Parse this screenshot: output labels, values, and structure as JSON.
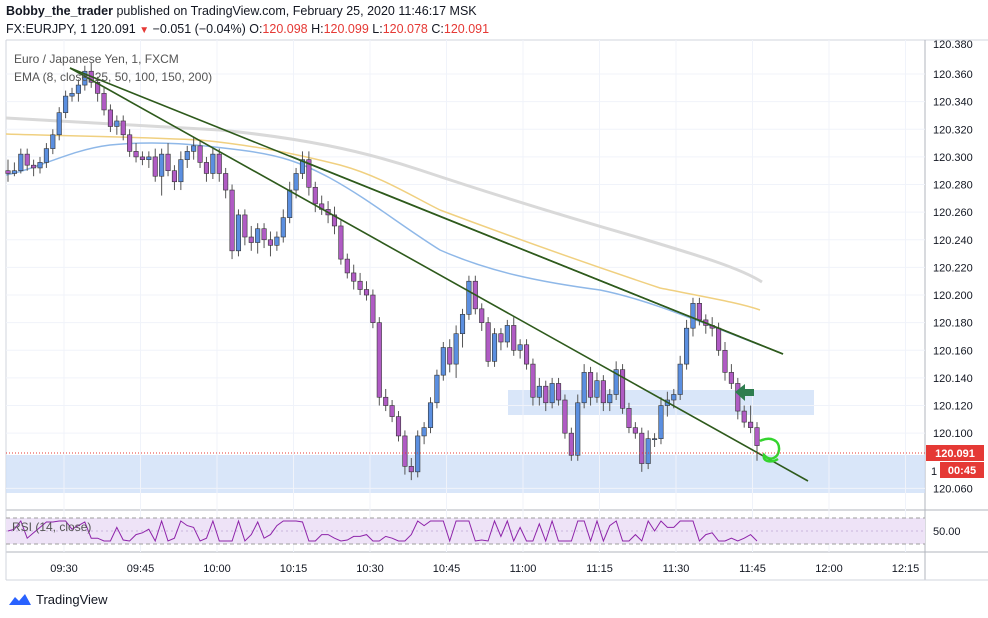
{
  "header": {
    "publisher": "Bobby_the_trader",
    "published_text": "published on TradingView.com, February 25, 2020 11:46:17 MSK",
    "symbol": "FX:EURJPY, 1",
    "last": "120.091",
    "change": "−0.051 (−0.04%)",
    "o_label": "O:",
    "o_value": "120.098",
    "h_label": "H:",
    "h_value": "120.099",
    "l_label": "L:",
    "l_value": "120.078",
    "c_label": "C:",
    "c_value": "120.091"
  },
  "legend": {
    "series_title": "Euro / Japanese Yen, 1, FXCM",
    "ema": "EMA (8, close, 25, 50, 100, 150, 200)",
    "rsi": "RSI (14, close)"
  },
  "footer": {
    "brand": "TradingView"
  },
  "chart_data": {
    "type": "candlestick",
    "price_ticks": [
      "120.360",
      "120.340",
      "120.320",
      "120.300",
      "120.280",
      "120.260",
      "120.240",
      "120.220",
      "120.200",
      "120.180",
      "120.160",
      "120.140",
      "120.120",
      "120.100",
      "120.060"
    ],
    "top_partial_tick": "120.380",
    "ylim": [
      120.048,
      120.381
    ],
    "time_ticks": [
      "09:30",
      "09:45",
      "10:00",
      "10:15",
      "10:30",
      "10:45",
      "11:00",
      "11:15",
      "11:30",
      "11:45",
      "12:00",
      "12:15"
    ],
    "current_price_badge": "120.091",
    "countdown_badge": "00:45",
    "hidden_tick_partial": "1",
    "rsi_ticks": [
      "50.00"
    ],
    "rsi_guides": [
      70,
      30
    ],
    "annotations": {
      "support_zones": [
        "120.118–120.135",
        "120.066–120.091"
      ],
      "trendlines": 3,
      "arrow_near": "120.137"
    },
    "candles_approx": [
      [
        120.29,
        120.298,
        120.282,
        120.288
      ],
      [
        120.288,
        120.296,
        120.286,
        120.29
      ],
      [
        120.29,
        120.306,
        120.288,
        120.302
      ],
      [
        120.302,
        120.306,
        120.29,
        120.294
      ],
      [
        120.294,
        120.298,
        120.286,
        120.292
      ],
      [
        120.292,
        120.3,
        120.288,
        120.296
      ],
      [
        120.296,
        120.31,
        120.292,
        120.306
      ],
      [
        120.306,
        120.32,
        120.302,
        120.316
      ],
      [
        120.316,
        120.336,
        120.312,
        120.332
      ],
      [
        120.332,
        120.348,
        120.328,
        120.344
      ],
      [
        120.344,
        120.35,
        120.34,
        120.346
      ],
      [
        120.346,
        120.356,
        120.34,
        120.352
      ],
      [
        120.352,
        120.366,
        120.348,
        120.362
      ],
      [
        120.362,
        120.368,
        120.35,
        120.354
      ],
      [
        120.354,
        120.358,
        120.34,
        120.346
      ],
      [
        120.346,
        120.35,
        120.33,
        120.334
      ],
      [
        120.334,
        120.338,
        120.318,
        120.322
      ],
      [
        120.322,
        120.33,
        120.316,
        120.326
      ],
      [
        120.326,
        120.33,
        120.312,
        120.316
      ],
      [
        120.316,
        120.32,
        120.3,
        120.304
      ],
      [
        120.304,
        120.31,
        120.296,
        120.3
      ],
      [
        120.3,
        120.304,
        120.294,
        120.298
      ],
      [
        120.298,
        120.304,
        120.292,
        120.3
      ],
      [
        120.3,
        120.306,
        120.282,
        120.286
      ],
      [
        120.286,
        120.306,
        120.272,
        120.302
      ],
      [
        120.302,
        120.31,
        120.286,
        120.29
      ],
      [
        120.29,
        120.294,
        120.276,
        120.282
      ],
      [
        120.282,
        120.304,
        120.276,
        120.298
      ],
      [
        120.298,
        120.308,
        120.292,
        120.304
      ],
      [
        120.304,
        120.314,
        120.298,
        120.308
      ],
      [
        120.308,
        120.312,
        120.292,
        120.296
      ],
      [
        120.296,
        120.3,
        120.282,
        120.288
      ],
      [
        120.288,
        120.306,
        120.284,
        120.302
      ],
      [
        120.302,
        120.306,
        120.282,
        120.288
      ],
      [
        120.288,
        120.292,
        120.27,
        120.276
      ],
      [
        120.276,
        120.28,
        120.226,
        120.232
      ],
      [
        120.232,
        120.262,
        120.228,
        120.258
      ],
      [
        120.258,
        120.262,
        120.236,
        120.242
      ],
      [
        120.242,
        120.25,
        120.232,
        120.238
      ],
      [
        120.238,
        120.252,
        120.23,
        120.248
      ],
      [
        120.248,
        120.252,
        120.234,
        120.24
      ],
      [
        120.24,
        120.246,
        120.228,
        120.236
      ],
      [
        120.236,
        120.246,
        120.232,
        120.242
      ],
      [
        120.242,
        120.262,
        120.238,
        120.256
      ],
      [
        120.256,
        120.282,
        120.252,
        120.276
      ],
      [
        120.276,
        120.292,
        120.27,
        120.288
      ],
      [
        120.288,
        120.304,
        120.284,
        120.298
      ],
      [
        120.298,
        120.304,
        120.272,
        120.278
      ],
      [
        120.278,
        120.282,
        120.26,
        120.266
      ],
      [
        120.266,
        120.272,
        120.258,
        120.262
      ],
      [
        120.262,
        120.268,
        120.252,
        120.258
      ],
      [
        120.258,
        120.264,
        120.244,
        120.25
      ],
      [
        120.25,
        120.254,
        120.222,
        120.226
      ],
      [
        120.226,
        120.23,
        120.212,
        120.216
      ],
      [
        120.216,
        120.222,
        120.204,
        120.21
      ],
      [
        120.21,
        120.216,
        120.2,
        120.204
      ],
      [
        120.204,
        120.21,
        120.196,
        120.2
      ],
      [
        120.2,
        120.204,
        120.176,
        120.18
      ],
      [
        120.18,
        120.184,
        120.12,
        120.126
      ],
      [
        120.126,
        120.132,
        120.116,
        120.12
      ],
      [
        120.12,
        120.124,
        120.108,
        120.112
      ],
      [
        120.112,
        120.116,
        120.094,
        120.098
      ],
      [
        120.098,
        120.102,
        120.07,
        120.076
      ],
      [
        120.076,
        120.082,
        120.066,
        120.072
      ],
      [
        120.072,
        120.102,
        120.068,
        120.098
      ],
      [
        120.098,
        120.108,
        120.092,
        120.104
      ],
      [
        120.104,
        120.126,
        120.1,
        120.122
      ],
      [
        120.122,
        120.146,
        120.118,
        120.142
      ],
      [
        120.142,
        120.166,
        120.138,
        120.162
      ],
      [
        120.162,
        120.168,
        120.144,
        120.15
      ],
      [
        120.15,
        120.178,
        120.14,
        120.172
      ],
      [
        120.172,
        120.19,
        120.162,
        120.186
      ],
      [
        120.186,
        120.214,
        120.182,
        120.21
      ],
      [
        120.21,
        120.214,
        120.186,
        120.19
      ],
      [
        120.19,
        120.194,
        120.174,
        120.18
      ],
      [
        120.18,
        120.184,
        120.148,
        120.152
      ],
      [
        120.152,
        120.176,
        120.148,
        120.172
      ],
      [
        120.172,
        120.176,
        120.16,
        120.166
      ],
      [
        120.166,
        120.182,
        120.162,
        120.178
      ],
      [
        120.178,
        120.184,
        120.156,
        120.16
      ],
      [
        120.16,
        120.168,
        120.154,
        120.164
      ],
      [
        120.164,
        120.168,
        120.146,
        120.15
      ],
      [
        120.15,
        120.154,
        120.12,
        120.126
      ],
      [
        120.126,
        120.14,
        120.12,
        120.134
      ],
      [
        120.134,
        120.138,
        120.116,
        120.122
      ],
      [
        120.122,
        120.14,
        120.118,
        120.136
      ],
      [
        120.136,
        120.14,
        120.12,
        120.124
      ],
      [
        120.124,
        120.128,
        120.096,
        120.1
      ],
      [
        120.1,
        120.104,
        120.08,
        120.084
      ],
      [
        120.084,
        120.128,
        120.08,
        120.122
      ],
      [
        120.122,
        120.15,
        120.118,
        120.144
      ],
      [
        120.144,
        120.148,
        120.12,
        120.126
      ],
      [
        120.126,
        120.144,
        120.122,
        120.138
      ],
      [
        120.138,
        120.142,
        120.116,
        120.122
      ],
      [
        120.122,
        120.132,
        120.116,
        120.128
      ],
      [
        120.128,
        120.152,
        120.124,
        120.146
      ],
      [
        120.146,
        120.15,
        120.114,
        120.118
      ],
      [
        120.118,
        120.122,
        120.1,
        120.104
      ],
      [
        120.104,
        120.108,
        120.096,
        120.1
      ],
      [
        120.1,
        120.104,
        120.072,
        120.078
      ],
      [
        120.078,
        120.102,
        120.074,
        120.096
      ],
      [
        120.096,
        120.1,
        120.09,
        120.096
      ],
      [
        120.096,
        120.126,
        120.092,
        120.12
      ],
      [
        120.12,
        120.13,
        120.112,
        120.124
      ],
      [
        120.124,
        120.132,
        120.118,
        120.128
      ],
      [
        120.128,
        120.156,
        120.124,
        120.15
      ],
      [
        120.15,
        120.182,
        120.146,
        120.176
      ],
      [
        120.176,
        120.198,
        120.17,
        120.194
      ],
      [
        120.194,
        120.198,
        120.178,
        120.182
      ],
      [
        120.182,
        120.186,
        120.172,
        120.178
      ],
      [
        120.178,
        120.184,
        120.17,
        120.176
      ],
      [
        120.176,
        120.18,
        120.156,
        120.16
      ],
      [
        120.16,
        120.166,
        120.138,
        120.144
      ],
      [
        120.144,
        120.15,
        120.132,
        120.136
      ],
      [
        120.136,
        120.14,
        120.11,
        120.116
      ],
      [
        120.116,
        120.12,
        120.104,
        120.108
      ],
      [
        120.108,
        120.12,
        120.1,
        120.104
      ],
      [
        120.104,
        120.108,
        120.08,
        120.091
      ]
    ]
  }
}
